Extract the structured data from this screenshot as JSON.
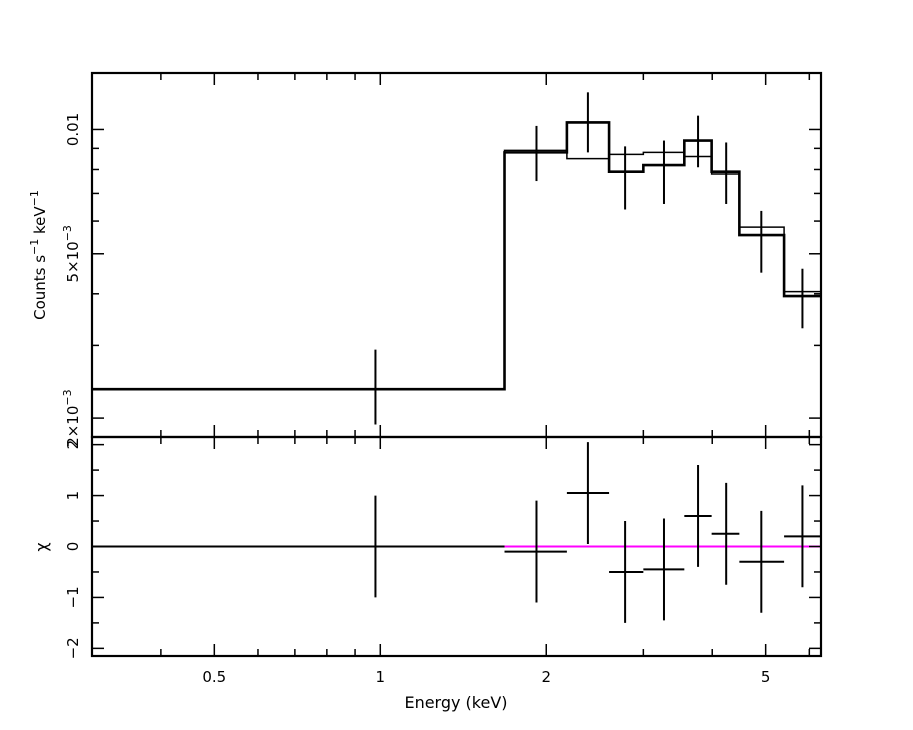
{
  "chart_data": [
    {
      "type": "scatter",
      "panel": "spectrum",
      "xscale": "log",
      "yscale": "log",
      "xlim": [
        0.3,
        6.3
      ],
      "ylim": [
        0.0018,
        0.0137
      ],
      "ylabel_parts": {
        "a": "Counts s",
        "b": "−1",
        "c": " keV",
        "d": "−1"
      },
      "yticks": [
        {
          "value": 0.002,
          "label": "2×10",
          "exp": "−3"
        },
        {
          "value": 0.005,
          "label": "5×10",
          "exp": "−3"
        },
        {
          "value": 0.01,
          "label": "0.01",
          "exp": ""
        }
      ],
      "data": [
        {
          "x": 0.98,
          "xlo": 0.3,
          "xhi": 1.68,
          "y": 0.00235,
          "ylo": 0.00193,
          "yhi": 0.00293
        },
        {
          "x": 1.92,
          "xlo": 1.68,
          "xhi": 2.18,
          "y": 0.0088,
          "ylo": 0.0075,
          "yhi": 0.0102
        },
        {
          "x": 2.38,
          "xlo": 2.18,
          "xhi": 2.6,
          "y": 0.0104,
          "ylo": 0.0088,
          "yhi": 0.0123
        },
        {
          "x": 2.78,
          "xlo": 2.6,
          "xhi": 3.0,
          "y": 0.0079,
          "ylo": 0.0064,
          "yhi": 0.0091
        },
        {
          "x": 3.27,
          "xlo": 3.0,
          "xhi": 3.56,
          "y": 0.0082,
          "ylo": 0.0066,
          "yhi": 0.0094
        },
        {
          "x": 3.77,
          "xlo": 3.56,
          "xhi": 3.99,
          "y": 0.0094,
          "ylo": 0.0081,
          "yhi": 0.0108
        },
        {
          "x": 4.24,
          "xlo": 3.99,
          "xhi": 4.48,
          "y": 0.0079,
          "ylo": 0.0066,
          "yhi": 0.0093
        },
        {
          "x": 4.91,
          "xlo": 4.48,
          "xhi": 5.4,
          "y": 0.00555,
          "ylo": 0.0045,
          "yhi": 0.00635
        },
        {
          "x": 5.83,
          "xlo": 5.4,
          "xhi": 6.3,
          "y": 0.00395,
          "ylo": 0.0033,
          "yhi": 0.0046
        }
      ],
      "model": [
        {
          "xlo": 0.3,
          "xhi": 1.68,
          "y": 0.00235
        },
        {
          "xlo": 1.68,
          "xhi": 2.18,
          "y": 0.0089
        },
        {
          "xlo": 2.18,
          "xhi": 2.6,
          "y": 0.0085
        },
        {
          "xlo": 2.6,
          "xhi": 3.0,
          "y": 0.0087
        },
        {
          "xlo": 3.0,
          "xhi": 3.56,
          "y": 0.0088
        },
        {
          "xlo": 3.56,
          "xhi": 3.99,
          "y": 0.0086
        },
        {
          "xlo": 3.99,
          "xhi": 4.48,
          "y": 0.0078
        },
        {
          "xlo": 4.48,
          "xhi": 5.4,
          "y": 0.0058
        },
        {
          "xlo": 5.4,
          "xhi": 6.3,
          "y": 0.00405
        }
      ]
    },
    {
      "type": "scatter",
      "panel": "residuals",
      "xscale": "log",
      "xlim": [
        0.3,
        6.3
      ],
      "ylim": [
        -2.15,
        2.15
      ],
      "ylabel": "χ",
      "xlabel": "Energy (keV)",
      "xticks": [
        {
          "value": 0.5,
          "label": "0.5"
        },
        {
          "value": 1,
          "label": "1"
        },
        {
          "value": 2,
          "label": "2"
        },
        {
          "value": 5,
          "label": "5"
        }
      ],
      "yticks": [
        {
          "value": -2,
          "label": "−2"
        },
        {
          "value": -1,
          "label": "−1"
        },
        {
          "value": 0,
          "label": "0"
        },
        {
          "value": 1,
          "label": "1"
        },
        {
          "value": 2,
          "label": "2"
        }
      ],
      "zero_line_color": "#ff00ff",
      "data": [
        {
          "x": 0.98,
          "xlo": 0.3,
          "xhi": 1.68,
          "y": 0.0,
          "ylo": -1.0,
          "yhi": 1.0
        },
        {
          "x": 1.92,
          "xlo": 1.68,
          "xhi": 2.18,
          "y": -0.1,
          "ylo": -1.1,
          "yhi": 0.9
        },
        {
          "x": 2.38,
          "xlo": 2.18,
          "xhi": 2.6,
          "y": 1.05,
          "ylo": 0.05,
          "yhi": 2.05
        },
        {
          "x": 2.78,
          "xlo": 2.6,
          "xhi": 3.0,
          "y": -0.5,
          "ylo": -1.5,
          "yhi": 0.5
        },
        {
          "x": 3.27,
          "xlo": 3.0,
          "xhi": 3.56,
          "y": -0.45,
          "ylo": -1.45,
          "yhi": 0.55
        },
        {
          "x": 3.77,
          "xlo": 3.56,
          "xhi": 3.99,
          "y": 0.6,
          "ylo": -0.4,
          "yhi": 1.6
        },
        {
          "x": 4.24,
          "xlo": 3.99,
          "xhi": 4.48,
          "y": 0.25,
          "ylo": -0.75,
          "yhi": 1.25
        },
        {
          "x": 4.91,
          "xlo": 4.48,
          "xhi": 5.4,
          "y": -0.3,
          "ylo": -1.3,
          "yhi": 0.7
        },
        {
          "x": 5.83,
          "xlo": 5.4,
          "xhi": 6.3,
          "y": 0.2,
          "ylo": -0.8,
          "yhi": 1.2
        }
      ]
    }
  ]
}
